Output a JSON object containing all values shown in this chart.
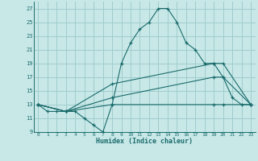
{
  "xlabel": "Humidex (Indice chaleur)",
  "bg_color": "#c8e8e8",
  "grid_color": "#a0cccc",
  "line_color": "#1a6b6b",
  "xlim": [
    -0.5,
    23.5
  ],
  "ylim": [
    9,
    28
  ],
  "xticks": [
    0,
    1,
    2,
    3,
    4,
    5,
    6,
    7,
    8,
    9,
    10,
    11,
    12,
    13,
    14,
    15,
    16,
    17,
    18,
    19,
    20,
    21,
    22,
    23
  ],
  "yticks": [
    9,
    11,
    13,
    15,
    17,
    19,
    21,
    23,
    25,
    27
  ],
  "lines": [
    {
      "x": [
        0,
        1,
        2,
        3,
        4,
        5,
        6,
        7,
        8,
        9,
        10,
        11,
        12,
        13,
        14,
        15,
        16,
        17,
        18,
        19,
        20,
        21,
        22,
        23
      ],
      "y": [
        13,
        12,
        12,
        12,
        12,
        11,
        10,
        9,
        13,
        19,
        22,
        24,
        25,
        27,
        27,
        25,
        22,
        21,
        19,
        19,
        17,
        14,
        13,
        13
      ]
    },
    {
      "x": [
        0,
        3,
        8,
        19,
        20,
        23
      ],
      "y": [
        13,
        12,
        16,
        19,
        19,
        13
      ]
    },
    {
      "x": [
        0,
        3,
        8,
        19,
        20,
        23
      ],
      "y": [
        13,
        12,
        14,
        17,
        17,
        13
      ]
    },
    {
      "x": [
        0,
        3,
        8,
        19,
        20,
        23
      ],
      "y": [
        13,
        12,
        13,
        13,
        13,
        13
      ]
    }
  ]
}
